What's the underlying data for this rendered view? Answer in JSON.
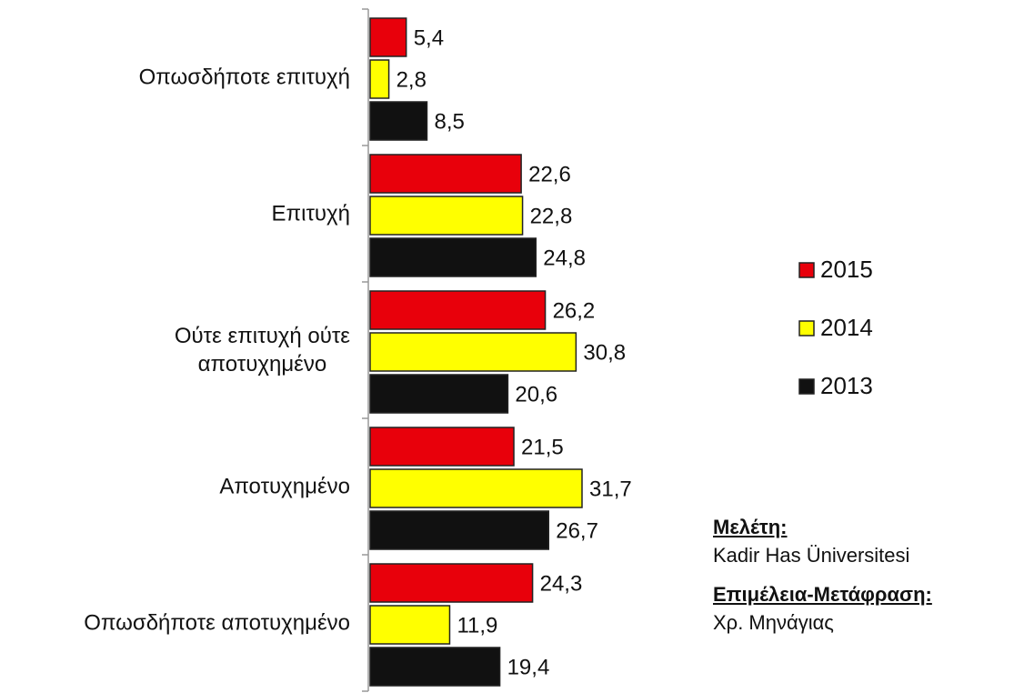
{
  "chart_data": {
    "type": "bar",
    "orientation": "horizontal",
    "categories": [
      "Οπωσδήποτε επιτυχή",
      "Επιτυχή",
      "Ούτε επιτυχή ούτε\nαποτυχημένο",
      "Αποτυχημένο",
      "Οπωσδήποτε αποτυχημένο"
    ],
    "series": [
      {
        "name": "2015",
        "color": "#e8000b",
        "values": [
          5.4,
          22.6,
          26.2,
          21.5,
          24.3
        ],
        "value_labels": [
          "5,4",
          "22,6",
          "26,2",
          "21,5",
          "24,3"
        ]
      },
      {
        "name": "2014",
        "color": "#ffff00",
        "values": [
          2.8,
          22.8,
          30.8,
          31.7,
          11.9
        ],
        "value_labels": [
          "2,8",
          "22,8",
          "30,8",
          "31,7",
          "11,9"
        ]
      },
      {
        "name": "2013",
        "color": "#111111",
        "values": [
          8.5,
          24.8,
          20.6,
          26.7,
          19.4
        ],
        "value_labels": [
          "8,5",
          "24,8",
          "20,6",
          "26,7",
          "19,4"
        ]
      }
    ],
    "legend": "right",
    "notes": [
      {
        "label": "Μελέτη:",
        "text": "Kadir Has Üniversitesi"
      },
      {
        "label": "Επιμέλεια-Μετάφραση:",
        "text": "Χρ. Μηνάγιας"
      }
    ]
  }
}
